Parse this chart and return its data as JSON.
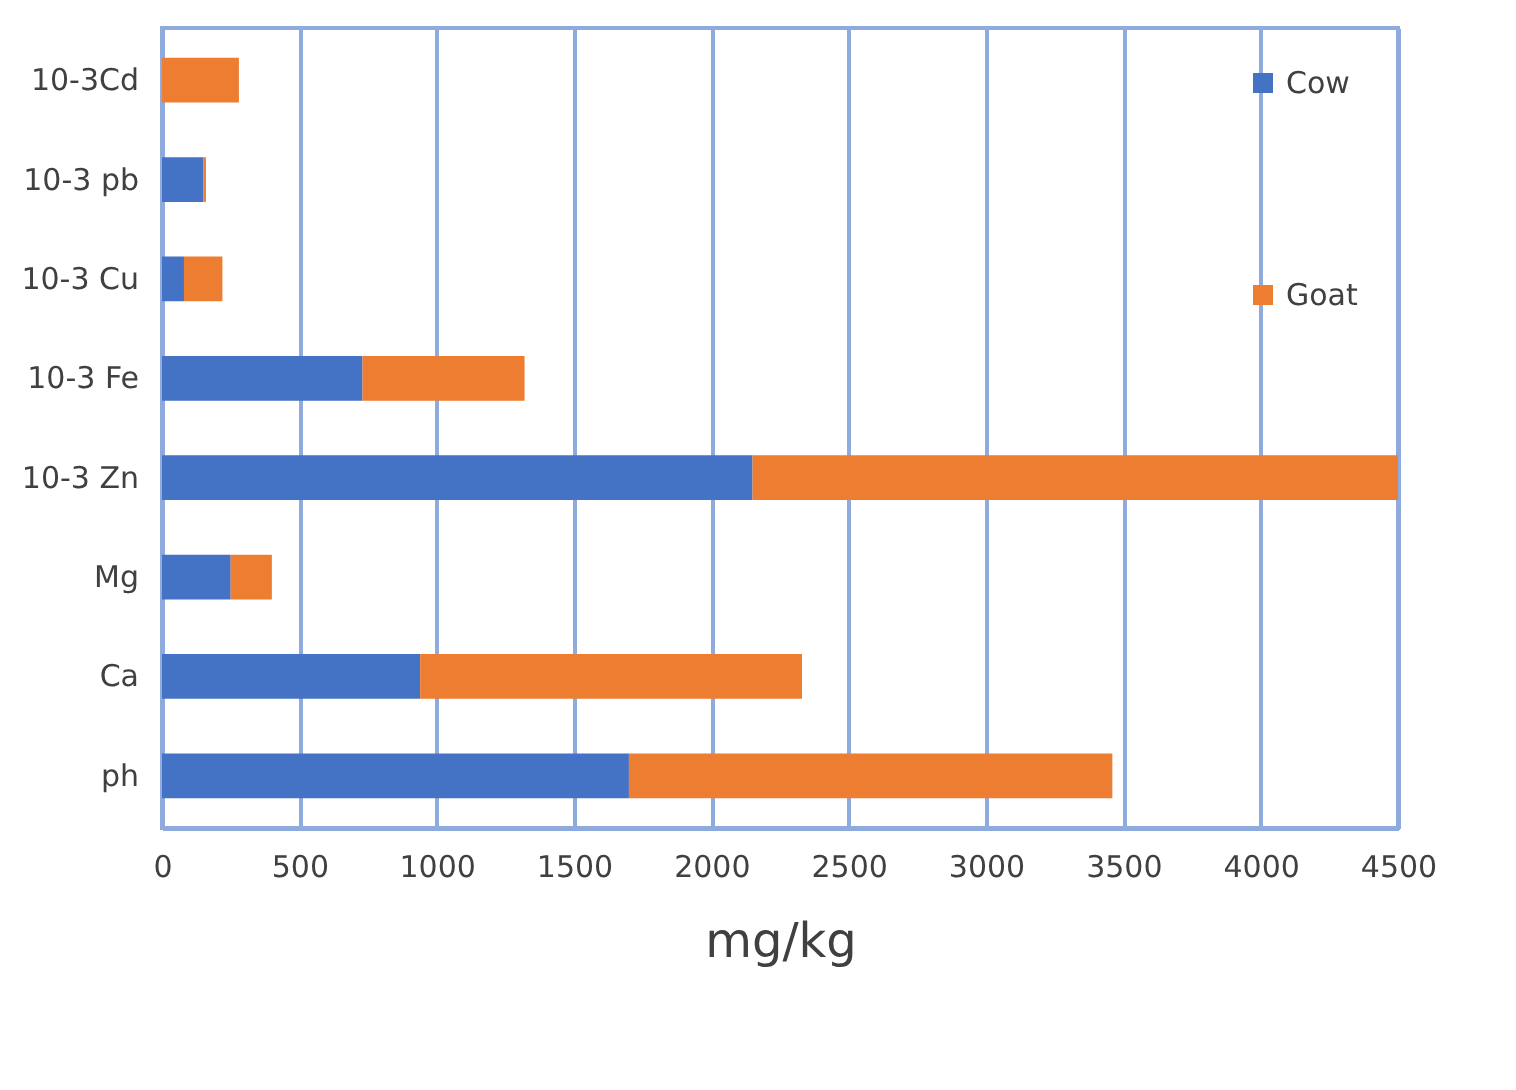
{
  "chart_data": {
    "type": "bar",
    "orientation": "horizontal",
    "stacked": true,
    "xlabel": "mg/kg",
    "categories": [
      "10-3Cd",
      "10-3 pb",
      "10-3 Cu",
      "10-3 Fe",
      "10-3 Zn",
      "Mg",
      "Ca",
      "ph"
    ],
    "series": [
      {
        "name": "Cow",
        "color": "#4472c4",
        "values": [
          0,
          150,
          80,
          730,
          2150,
          250,
          940,
          1700
        ]
      },
      {
        "name": "Goat",
        "color": "#ed7d31",
        "values": [
          280,
          10,
          140,
          590,
          2350,
          150,
          1390,
          1760
        ]
      }
    ],
    "xlim": [
      0,
      4500
    ],
    "xticks": [
      0,
      500,
      1000,
      1500,
      2000,
      2500,
      3000,
      3500,
      4000,
      4500
    ],
    "grid": "x",
    "legend": "top right"
  }
}
